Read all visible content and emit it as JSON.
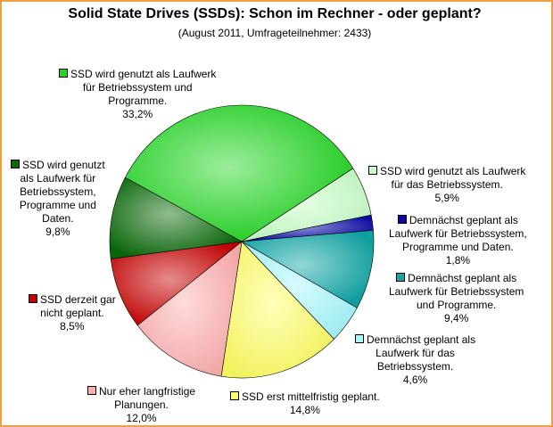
{
  "chart_data": {
    "type": "pie",
    "title": "Solid State Drives (SSDs): Schon im Rechner - oder geplant?",
    "subtitle": "(August 2011, Umfrageteilnehmer: 2433)",
    "unit": "%",
    "slices": [
      {
        "key": "ssd-os-programs",
        "lines": [
          "SSD wird genutzt als Laufwerk",
          "für Betriebssystem und",
          "Programme."
        ],
        "value_label": "33,2%",
        "value": 33.2,
        "color": "#22d622"
      },
      {
        "key": "ssd-os-only",
        "lines": [
          "SSD wird genutzt als Laufwerk",
          "für das Betriebssystem."
        ],
        "value_label": "5,9%",
        "value": 5.9,
        "color": "#c8ffc8"
      },
      {
        "key": "planned-os-programs-data",
        "lines": [
          "Demnächst geplant als",
          "Laufwerk für Betriebssystem,",
          "Programme und Daten."
        ],
        "value_label": "1,8%",
        "value": 1.8,
        "color": "#0a0aa8"
      },
      {
        "key": "planned-os-programs",
        "lines": [
          "Demnächst geplant als",
          "Laufwerk für Betriebssystem",
          "und Programme."
        ],
        "value_label": "9,4%",
        "value": 9.4,
        "color": "#12a6a6"
      },
      {
        "key": "planned-os",
        "lines": [
          "Demnächst geplant als",
          "Laufwerk für das",
          "Betriebssystem."
        ],
        "value_label": "4,6%",
        "value": 4.6,
        "color": "#a8f8ff"
      },
      {
        "key": "mid-term",
        "lines": [
          "SSD erst mittelfristig geplant."
        ],
        "value_label": "14,8%",
        "value": 14.8,
        "color": "#ffff66"
      },
      {
        "key": "long-term",
        "lines": [
          "Nur eher langfristige",
          "Planungen."
        ],
        "value_label": "12,0%",
        "value": 12.0,
        "color": "#ffb0b0"
      },
      {
        "key": "not-planned",
        "lines": [
          "SSD derzeit gar",
          "nicht geplant."
        ],
        "value_label": "8,5%",
        "value": 8.5,
        "color": "#c80000"
      },
      {
        "key": "ssd-os-programs-data",
        "lines": [
          "SSD wird genutzt",
          "als Laufwerk für",
          "Betriebssystem,",
          "Programme und",
          "Daten."
        ],
        "value_label": "9,8%",
        "value": 9.8,
        "color": "#0a6a0a"
      }
    ]
  }
}
